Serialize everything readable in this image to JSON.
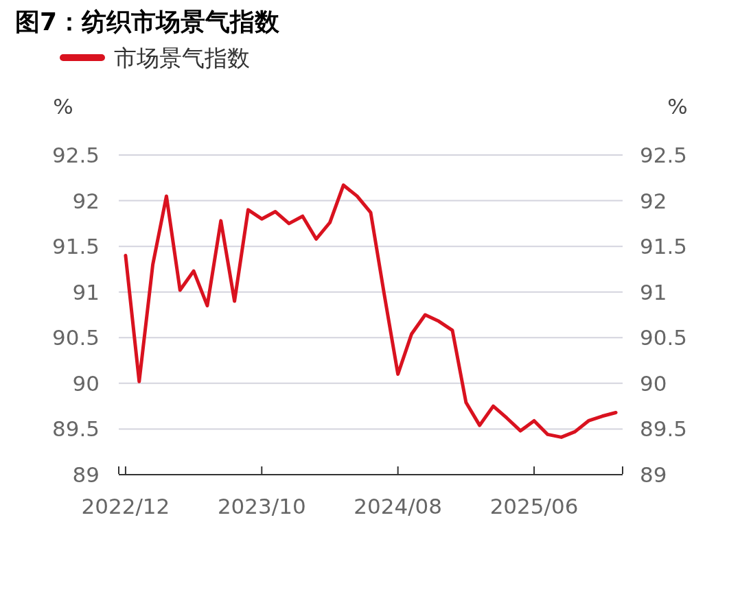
{
  "chart_data": {
    "type": "line",
    "title": "图7：纺织市场景气指数",
    "ylabel": "%",
    "y2label": "%",
    "categories": [
      "2022/12",
      null,
      null,
      null,
      null,
      null,
      null,
      null,
      null,
      null,
      "2023/10",
      null,
      null,
      null,
      null,
      null,
      null,
      null,
      null,
      null,
      "2024/08",
      null,
      null,
      null,
      null,
      null,
      null,
      null,
      null,
      null,
      "2025/06",
      null,
      null,
      null,
      null,
      null,
      null
    ],
    "series": [
      {
        "name": "市场景气指数",
        "color": "#d9121f",
        "values": [
          91.4,
          90.02,
          91.3,
          92.05,
          91.02,
          91.23,
          90.85,
          91.78,
          90.9,
          91.9,
          91.8,
          91.88,
          91.75,
          91.83,
          91.58,
          91.76,
          92.17,
          92.05,
          91.87,
          90.97,
          90.1,
          90.54,
          90.75,
          90.68,
          90.58,
          89.79,
          89.54,
          89.75,
          89.62,
          89.48,
          89.59,
          89.44,
          89.41,
          89.47,
          89.59,
          89.64,
          89.68
        ]
      }
    ],
    "ylim": [
      89,
      92.5
    ],
    "yticks": [
      89,
      89.5,
      90,
      90.5,
      91,
      91.5,
      92,
      92.5
    ],
    "y2lim": [
      89,
      92.5
    ],
    "y2ticks": [
      89,
      89.5,
      90,
      90.5,
      91,
      91.5,
      92,
      92.5
    ],
    "grid": "y",
    "legend": "top left"
  }
}
